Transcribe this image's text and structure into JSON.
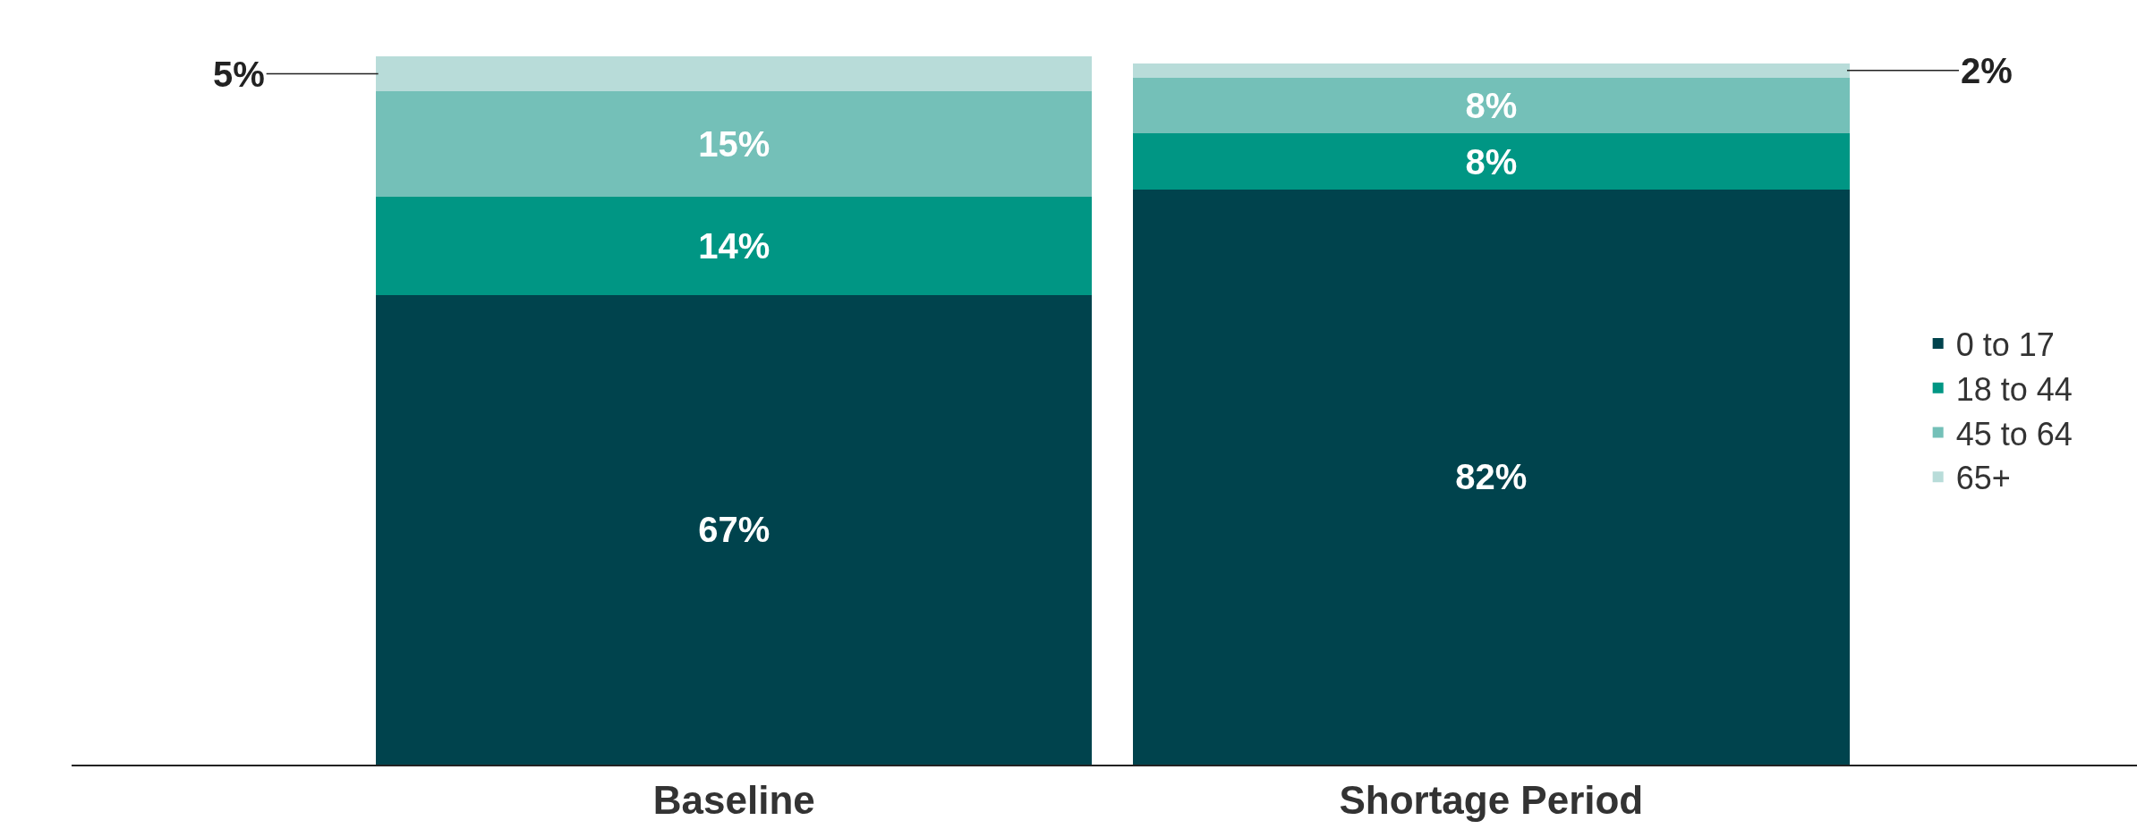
{
  "chart_data": {
    "type": "bar",
    "stacked": true,
    "categories": [
      "Baseline",
      "Shortage Period"
    ],
    "series": [
      {
        "name": "0 to 17",
        "color": "#00434d",
        "values": [
          67,
          82
        ],
        "value_labels": [
          "67%",
          "82%"
        ]
      },
      {
        "name": "18 to 44",
        "color": "#009684",
        "values": [
          14,
          8
        ],
        "value_labels": [
          "14%",
          "8%"
        ]
      },
      {
        "name": "45 to 64",
        "color": "#74c0b8",
        "values": [
          15,
          8
        ],
        "value_labels": [
          "15%",
          "8%"
        ]
      },
      {
        "name": "65+",
        "color": "#b8dcd9",
        "values": [
          5,
          2
        ],
        "value_labels": [
          "5%",
          "2%"
        ]
      }
    ],
    "legend": "right"
  }
}
